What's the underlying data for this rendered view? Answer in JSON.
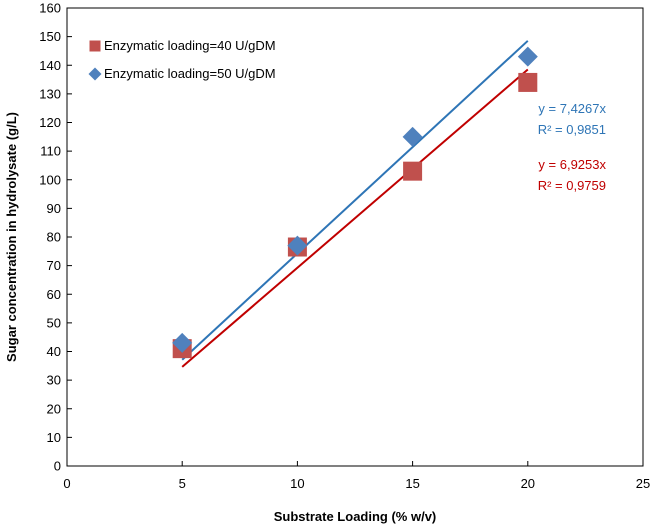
{
  "chart_data": {
    "type": "scatter",
    "title": "",
    "xlabel": "Substrate Loading (% w/v)",
    "ylabel": "Sugar concentration in hydrolysate (g/L)",
    "xlim": [
      0,
      25
    ],
    "ylim": [
      0,
      160
    ],
    "x_ticks": [
      "0",
      "5",
      "10",
      "15",
      "20",
      "25"
    ],
    "y_ticks": [
      "0",
      "10",
      "20",
      "30",
      "40",
      "50",
      "60",
      "70",
      "80",
      "90",
      "100",
      "110",
      "120",
      "130",
      "140",
      "150",
      "160"
    ],
    "grid": false,
    "legend_position": "top-left",
    "series": [
      {
        "name": "Enzymatic loading=40 U/gDM",
        "marker": "square",
        "color": "#C0504D",
        "points": [
          [
            5,
            41
          ],
          [
            10,
            76.5
          ],
          [
            15,
            103
          ],
          [
            20,
            134
          ]
        ],
        "trendline": {
          "slope": 6.9253,
          "x_range": [
            5,
            20
          ],
          "color": "#C00000",
          "equation": "y = 6,9253x",
          "r2": "R² = 0,9759"
        }
      },
      {
        "name": "Enzymatic loading=50 U/gDM",
        "marker": "diamond",
        "color": "#4F81BD",
        "points": [
          [
            5,
            43
          ],
          [
            10,
            77
          ],
          [
            15,
            115
          ],
          [
            20,
            143
          ]
        ],
        "trendline": {
          "slope": 7.4267,
          "x_range": [
            5,
            20
          ],
          "color": "#2E75B6",
          "equation": "y = 7,4267x",
          "r2": "R² = 0,9851"
        }
      }
    ]
  }
}
